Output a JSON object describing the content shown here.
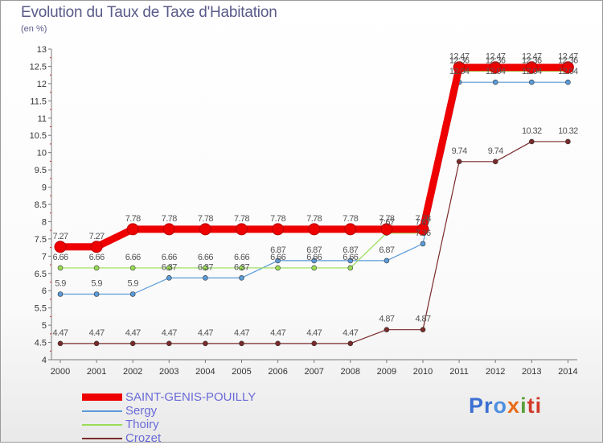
{
  "title": "Evolution du Taux de Taxe d'Habitation",
  "unit": "(en %)",
  "colors": {
    "title": "#5a5a8a",
    "axis": "#7a7a7a",
    "legend_text": "#6a6ad8"
  },
  "chart_data": {
    "type": "line",
    "title": "Evolution du Taux de Taxe d'Habitation",
    "ylabel": "(en %)",
    "xlabel": "",
    "x": [
      "2000",
      "2001",
      "2002",
      "2003",
      "2004",
      "2005",
      "2006",
      "2007",
      "2008",
      "2009",
      "2010",
      "2011",
      "2012",
      "2013",
      "2014"
    ],
    "ylim": [
      4,
      13
    ],
    "yticks": [
      "4",
      "4.5",
      "5",
      "5.5",
      "6",
      "6.5",
      "7",
      "7.5",
      "8",
      "8.5",
      "9",
      "9.5",
      "10",
      "10.5",
      "11",
      "11.5",
      "12",
      "12.5",
      "13"
    ],
    "grid": false,
    "legend_position": "bottom-left",
    "series": [
      {
        "name": "SAINT-GENIS-POUILLY",
        "color": "#ee0000",
        "values": [
          7.27,
          7.27,
          7.78,
          7.78,
          7.78,
          7.78,
          7.78,
          7.78,
          7.78,
          7.78,
          7.78,
          12.47,
          12.47,
          12.47,
          12.47
        ],
        "labels": [
          "7.27",
          "7.27",
          "7.78",
          "7.78",
          "7.78",
          "7.78",
          "7.78",
          "7.78",
          "7.78",
          "7.78",
          "7.78",
          "12.47",
          "12.47",
          "12.47",
          "12.47"
        ]
      },
      {
        "name": "Sergy",
        "color": "#5a9bd8",
        "values": [
          5.9,
          5.9,
          5.9,
          6.37,
          6.37,
          6.37,
          6.87,
          6.87,
          6.87,
          6.87,
          7.36,
          12.04,
          12.04,
          12.04,
          12.04
        ],
        "labels": [
          "5.9",
          "5.9",
          "5.9",
          "6.37",
          "6.37",
          "6.37",
          "6.87",
          "6.87",
          "6.87",
          "6.87",
          "7.36",
          "12.04",
          "12.04",
          "12.04",
          "12.04"
        ]
      },
      {
        "name": "Thoiry",
        "color": "#99dd55",
        "values": [
          6.66,
          6.66,
          6.66,
          6.66,
          6.66,
          6.66,
          6.66,
          6.66,
          6.66,
          7.67,
          7.67,
          12.36,
          12.36,
          12.36,
          12.36
        ],
        "labels": [
          "6.66",
          "6.66",
          "6.66",
          "6.66",
          "6.66",
          "6.66",
          "6.66",
          "6.66",
          "6.66",
          "7.67",
          "7.67",
          "12.36",
          "12.36",
          "12.36",
          "12.36"
        ]
      },
      {
        "name": "Crozet",
        "color": "#7a2a2a",
        "values": [
          4.47,
          4.47,
          4.47,
          4.47,
          4.47,
          4.47,
          4.47,
          4.47,
          4.47,
          4.87,
          4.87,
          9.74,
          9.74,
          10.32,
          10.32
        ],
        "labels": [
          "4.47",
          "4.47",
          "4.47",
          "4.47",
          "4.47",
          "4.47",
          "4.47",
          "4.47",
          "4.47",
          "4.87",
          "4.87",
          "9.74",
          "9.74",
          "10.32",
          "10.32"
        ]
      }
    ]
  },
  "legend": [
    {
      "label": "SAINT-GENIS-POUILLY",
      "color": "#ee0000"
    },
    {
      "label": "Sergy",
      "color": "#5a9bd8"
    },
    {
      "label": "Thoiry",
      "color": "#99dd55"
    },
    {
      "label": "Crozet",
      "color": "#7a2a2a"
    }
  ],
  "logo": {
    "p1": "Pr",
    "p2": "o",
    "p3": "x",
    "p4": "i",
    "p5": "ti"
  }
}
